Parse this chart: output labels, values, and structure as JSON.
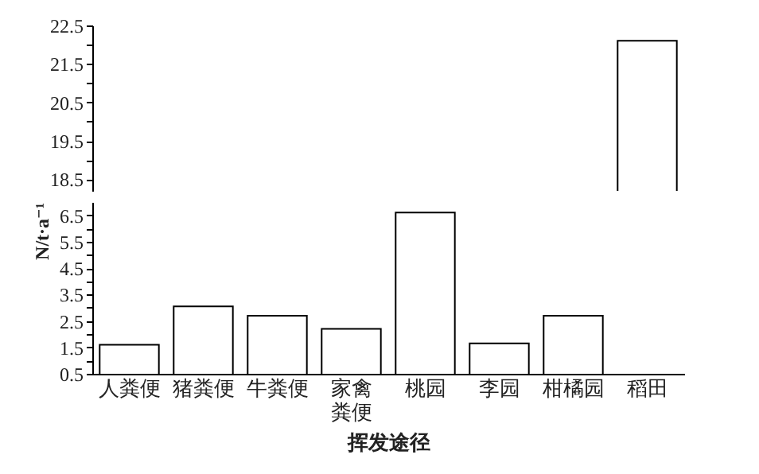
{
  "chart_data": [
    {
      "type": "bar",
      "categories": [
        "人粪便",
        "猪粪便",
        "牛粪便",
        "家禽粪便",
        "桃园",
        "李园",
        "柑橘园",
        "稻田"
      ],
      "values": [
        null,
        null,
        null,
        null,
        null,
        null,
        null,
        22.1
      ],
      "color": "#ffffff",
      "ylim": [
        18.2,
        22.5
      ],
      "yticks": [
        18.5,
        {
          "value": 19,
          "label": null
        },
        19.5,
        {
          "value": 20,
          "label": null
        },
        20.5,
        {
          "value": 21,
          "label": null
        },
        21.5,
        {
          "value": 22,
          "label": null
        },
        22.5
      ],
      "tick_labels": "y"
    },
    {
      "type": "bar",
      "categories": [
        "人粪便",
        "猪粪便",
        "牛粪便",
        "家禽粪便",
        "桃园",
        "李园",
        "柑橘园",
        "稻田"
      ],
      "values": [
        1.6,
        3.05,
        2.7,
        2.2,
        6.6,
        1.65,
        2.7,
        null
      ],
      "color": "#ffffff",
      "ylim": [
        0.5,
        7.0
      ],
      "yticks": [
        0.5,
        {
          "value": 1,
          "label": null
        },
        1.5,
        {
          "value": 2,
          "label": null
        },
        2.5,
        {
          "value": 3,
          "label": null
        },
        3.5,
        {
          "value": 4,
          "label": null
        },
        4.5,
        {
          "value": 5,
          "label": null
        },
        5.5,
        {
          "value": 6,
          "label": null
        },
        6.5
      ],
      "xlabel": "挥发途径",
      "ylabel": "N/t·a⁻¹"
    }
  ]
}
